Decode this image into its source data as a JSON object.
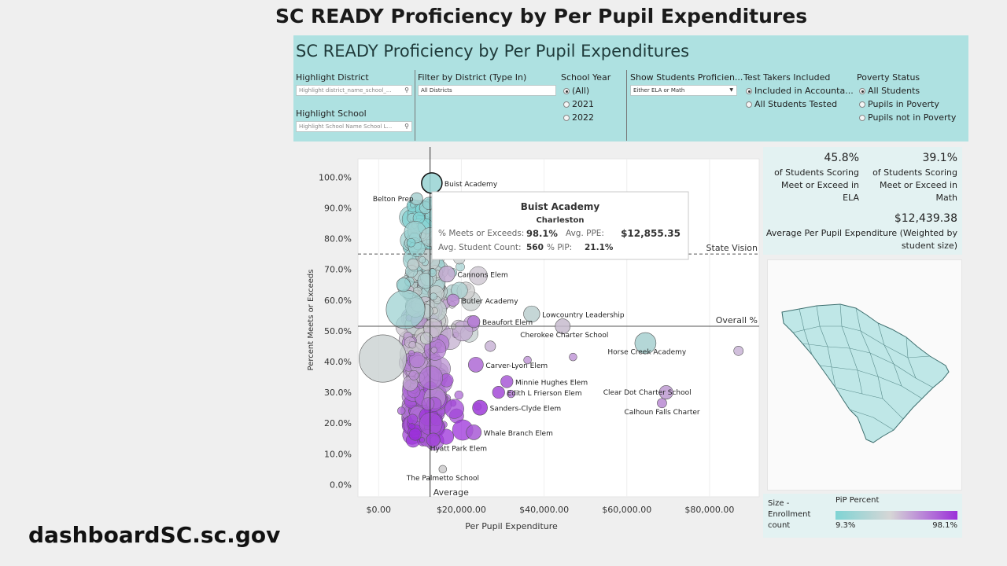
{
  "slide_title": "SC READY Proficiency by Per Pupil Expenditures",
  "footer_url": "dashboardSC.sc.gov",
  "dashboard": {
    "title": "SC READY Proficiency by Per Pupil Expenditures",
    "highlight_district": {
      "label": "Highlight District",
      "placeholder": "Highlight district_name_school_..."
    },
    "highlight_school": {
      "label": "Highlight School",
      "placeholder": "Highlight School Name School L..."
    },
    "filter_district": {
      "label": "Filter by District (Type In)",
      "value": "All Districts"
    },
    "school_year": {
      "label": "School Year",
      "options": [
        "(All)",
        "2021",
        "2022"
      ],
      "selected": "(All)"
    },
    "show_students": {
      "label": "Show Students Proficien...",
      "value": "Either ELA or Math"
    },
    "test_takers": {
      "label": "Test Takers Included",
      "options": [
        "Included in Accounta...",
        "All Students Tested"
      ],
      "selected": "Included in Accounta..."
    },
    "poverty_status": {
      "label": "Poverty Status",
      "options": [
        "All Students",
        "Pupils in Poverty",
        "Pupils not in Poverty"
      ],
      "selected": "All Students"
    }
  },
  "kpis": {
    "ela_value": "45.8%",
    "ela_label_1": "of Students Scoring",
    "ela_label_2": "Meet or Exceed in",
    "ela_label_3": "ELA",
    "math_value": "39.1%",
    "math_label_1": "of Students Scoring",
    "math_label_2": "Meet or Exceed in",
    "math_label_3": "Math",
    "ppe_value": "$12,439.38",
    "ppe_label_1": "Average Per Pupil Expenditure (Weighted by",
    "ppe_label_2": "student size)"
  },
  "legend": {
    "size_label_1": "Size -",
    "size_label_2": "Enrollment",
    "size_label_3": "count",
    "color_title": "PiP Percent",
    "color_min": "9.3%",
    "color_max": "98.1%",
    "color_low": "#7fd4d4",
    "color_high": "#9b30d9"
  },
  "tooltip": {
    "school": "Buist Academy",
    "district": "Charleston",
    "meets_label": "% Meets or Exceeds:",
    "meets_value": "98.1%",
    "ppe_label": "Avg. PPE:",
    "ppe_value": "$12,855.35",
    "count_label": "Avg. Student Count:",
    "count_value": "560",
    "pip_label": "% PiP:",
    "pip_value": "21.1%"
  },
  "chart_data": {
    "type": "scatter",
    "title": "",
    "xlabel": "Per Pupil Expenditure",
    "ylabel": "Percent Meets or Exceeds",
    "xlim": [
      -5000,
      92000
    ],
    "ylim": [
      -4,
      106
    ],
    "x_ticks": [
      "$0.00",
      "$20,000.00",
      "$40,000.00",
      "$60,000.00",
      "$80,000.00"
    ],
    "x_tick_values": [
      0,
      20000,
      40000,
      60000,
      80000
    ],
    "y_ticks": [
      "0.0%",
      "10.0%",
      "20.0%",
      "30.0%",
      "40.0%",
      "50.0%",
      "60.0%",
      "70.0%",
      "80.0%",
      "90.0%",
      "100.0%"
    ],
    "y_tick_values": [
      0,
      10,
      20,
      30,
      40,
      50,
      60,
      70,
      80,
      90,
      100
    ],
    "reference_lines": [
      {
        "axis": "x",
        "value": 12439,
        "label": "Average"
      },
      {
        "axis": "y",
        "value": 51.5,
        "label": "Overall %"
      },
      {
        "axis": "y",
        "value": 75,
        "label": "State Vision"
      }
    ],
    "labeled_points": [
      {
        "name": "Buist Academy",
        "x": 12855,
        "y": 98.1,
        "pip": 21,
        "size": 560
      },
      {
        "name": "Belton Prep",
        "x": 9200,
        "y": 93,
        "pip": 30,
        "size": 200
      },
      {
        "name": "Cannons Elem",
        "x": 16500,
        "y": 68.5,
        "pip": 60,
        "size": 350
      },
      {
        "name": "Butler Academy",
        "x": 18000,
        "y": 60,
        "pip": 70,
        "size": 200
      },
      {
        "name": "Lowcountry Leadership",
        "x": 37000,
        "y": 55.5,
        "pip": 40,
        "size": 350
      },
      {
        "name": "Beaufort Elem",
        "x": 23000,
        "y": 53,
        "pip": 75,
        "size": 200
      },
      {
        "name": "Cherokee Charter School",
        "x": 44500,
        "y": 51.5,
        "pip": 55,
        "size": 300
      },
      {
        "name": "Horse Creek Academy",
        "x": 64500,
        "y": 46,
        "pip": 30,
        "size": 600
      },
      {
        "name": "Carver-Lyon Elem",
        "x": 23500,
        "y": 39,
        "pip": 80,
        "size": 300
      },
      {
        "name": "Minnie Hughes Elem",
        "x": 31000,
        "y": 33.5,
        "pip": 85,
        "size": 200
      },
      {
        "name": "Clear Dot Charter School",
        "x": 69500,
        "y": 30,
        "pip": 65,
        "size": 250
      },
      {
        "name": "Edith L Frierson Elem",
        "x": 29000,
        "y": 30,
        "pip": 90,
        "size": 200
      },
      {
        "name": "Sanders-Clyde Elem",
        "x": 24500,
        "y": 25,
        "pip": 95,
        "size": 300
      },
      {
        "name": "Calhoun Falls Charter",
        "x": 68500,
        "y": 26.5,
        "pip": 70,
        "size": 120
      },
      {
        "name": "Whale Branch Elem",
        "x": 23000,
        "y": 17,
        "pip": 85,
        "size": 300
      },
      {
        "name": "Hyatt Park Elem",
        "x": 13200,
        "y": 14.5,
        "pip": 92,
        "size": 250
      },
      {
        "name": "The Palmetto School",
        "x": 15500,
        "y": 5,
        "pip": 50,
        "size": 80
      }
    ],
    "notable_points": [
      {
        "x": 1000,
        "y": 41,
        "pip": 45,
        "size": 3000
      },
      {
        "x": 6500,
        "y": 57,
        "pip": 25,
        "size": 2000
      },
      {
        "x": 87000,
        "y": 43.5,
        "pip": 60,
        "size": 120
      },
      {
        "x": 5500,
        "y": 24,
        "pip": 80,
        "size": 80
      },
      {
        "x": 6000,
        "y": 65,
        "pip": 20,
        "size": 250
      },
      {
        "x": 47000,
        "y": 41.5,
        "pip": 70,
        "size": 80
      },
      {
        "x": 36000,
        "y": 40.5,
        "pip": 70,
        "size": 80
      },
      {
        "x": 27000,
        "y": 45,
        "pip": 60,
        "size": 150
      },
      {
        "x": 32000,
        "y": 29.5,
        "pip": 80,
        "size": 80
      }
    ],
    "cluster": {
      "description_values": "dense group of several hundred schools between about $9,000 and $18,000 per pupil spanning 14% to 95% proficiency; higher poverty schools cluster at lower proficiency",
      "x_range": [
        8000,
        18500
      ],
      "y_range": [
        13,
        95
      ]
    }
  }
}
